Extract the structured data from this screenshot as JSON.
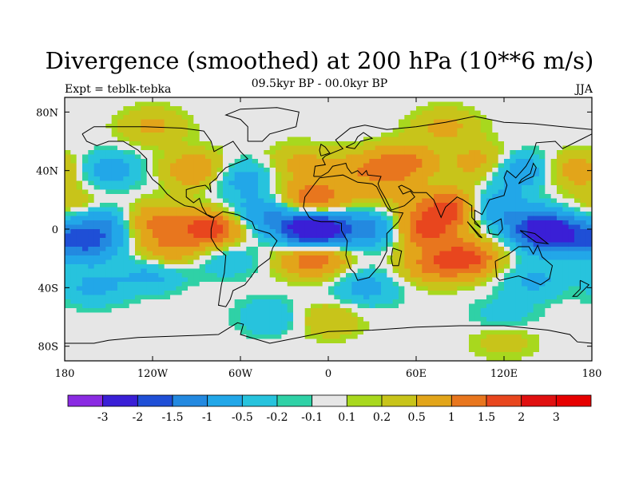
{
  "header": {
    "title": "Divergence (smoothed) at 200 hPa (10**6 m/s)",
    "subtitle": "09.5kyr BP - 00.0kyr BP",
    "left_label": "Expt = teblk-tebka",
    "right_label": "JJA"
  },
  "chart_data": {
    "type": "heatmap",
    "title": "Divergence (smoothed) at 200 hPa (10**6 m/s)",
    "subtitle": "09.5kyr BP - 00.0kyr BP",
    "variable": "200 hPa divergence difference",
    "units": "10**6 m/s",
    "xlim": [
      -180,
      180
    ],
    "ylim": [
      -90,
      90
    ],
    "x_ticks": [
      {
        "value": -180,
        "label": "180"
      },
      {
        "value": -120,
        "label": "120W"
      },
      {
        "value": -60,
        "label": "60W"
      },
      {
        "value": 0,
        "label": "0"
      },
      {
        "value": 60,
        "label": "60E"
      },
      {
        "value": 120,
        "label": "120E"
      },
      {
        "value": 180,
        "label": "180"
      }
    ],
    "y_ticks": [
      {
        "value": 80,
        "label": "80N"
      },
      {
        "value": 40,
        "label": "40N"
      },
      {
        "value": 0,
        "label": "0"
      },
      {
        "value": -40,
        "label": "40S"
      },
      {
        "value": -80,
        "label": "80S"
      }
    ],
    "colorbar": {
      "labels": [
        "-3",
        "-2",
        "-1.5",
        "-1",
        "-0.5",
        "-0.2",
        "-0.1",
        "0.1",
        "0.2",
        "0.5",
        "1",
        "1.5",
        "2",
        "3"
      ],
      "colors": [
        "#8a2be2",
        "#3a1fd6",
        "#1f4fd6",
        "#2389e0",
        "#22a7e8",
        "#27c3dd",
        "#2fd1a6",
        "#e6e6e6",
        "#a8d81e",
        "#c8c41a",
        "#e2a51a",
        "#e8761e",
        "#e8461e",
        "#e01010",
        "#e60000"
      ]
    },
    "anomalies": [
      {
        "lon": -10,
        "lat": 0,
        "value": -3.2
      },
      {
        "lon": -10,
        "lat": 20,
        "value": 1.6
      },
      {
        "lon": -10,
        "lat": -20,
        "value": 1.5
      },
      {
        "lon": -80,
        "lat": 0,
        "value": 1.8
      },
      {
        "lon": -155,
        "lat": 5,
        "value": -1.2
      },
      {
        "lon": -165,
        "lat": -10,
        "value": -1.4
      },
      {
        "lon": -170,
        "lat": 15,
        "value": 0.6
      },
      {
        "lon": -120,
        "lat": 5,
        "value": 1.1
      },
      {
        "lon": -110,
        "lat": -15,
        "value": 0.9
      },
      {
        "lon": -120,
        "lat": -30,
        "value": -0.7
      },
      {
        "lon": -160,
        "lat": -40,
        "value": -0.6
      },
      {
        "lon": -70,
        "lat": -20,
        "value": -0.5
      },
      {
        "lon": -45,
        "lat": 10,
        "value": -1.0
      },
      {
        "lon": 30,
        "lat": 0,
        "value": -1.2
      },
      {
        "lon": 65,
        "lat": 0,
        "value": 1.6
      },
      {
        "lon": 85,
        "lat": 15,
        "value": 1.8
      },
      {
        "lon": 110,
        "lat": 15,
        "value": -1.1
      },
      {
        "lon": 145,
        "lat": 0,
        "value": -2.0
      },
      {
        "lon": 160,
        "lat": -5,
        "value": -1.3
      },
      {
        "lon": 95,
        "lat": -20,
        "value": 1.6
      },
      {
        "lon": 70,
        "lat": -25,
        "value": 0.9
      },
      {
        "lon": 140,
        "lat": -35,
        "value": -0.6
      },
      {
        "lon": 25,
        "lat": -40,
        "value": -0.7
      },
      {
        "lon": 50,
        "lat": 45,
        "value": 1.3
      },
      {
        "lon": 20,
        "lat": 40,
        "value": 0.7
      },
      {
        "lon": 105,
        "lat": 45,
        "value": 0.8
      },
      {
        "lon": 130,
        "lat": 40,
        "value": -1.0
      },
      {
        "lon": 170,
        "lat": 40,
        "value": 0.8
      },
      {
        "lon": -150,
        "lat": 40,
        "value": -0.8
      },
      {
        "lon": -90,
        "lat": 40,
        "value": 1.0
      },
      {
        "lon": -60,
        "lat": 35,
        "value": -0.8
      },
      {
        "lon": -20,
        "lat": 45,
        "value": 0.6
      },
      {
        "lon": 40,
        "lat": 25,
        "value": 0.5
      },
      {
        "lon": 80,
        "lat": 70,
        "value": 0.6
      },
      {
        "lon": -120,
        "lat": 70,
        "value": 0.6
      },
      {
        "lon": 0,
        "lat": -62,
        "value": 0.5
      },
      {
        "lon": -40,
        "lat": -60,
        "value": -0.5
      },
      {
        "lon": 120,
        "lat": -60,
        "value": -0.4
      },
      {
        "lon": 120,
        "lat": -75,
        "value": 0.4
      }
    ]
  }
}
